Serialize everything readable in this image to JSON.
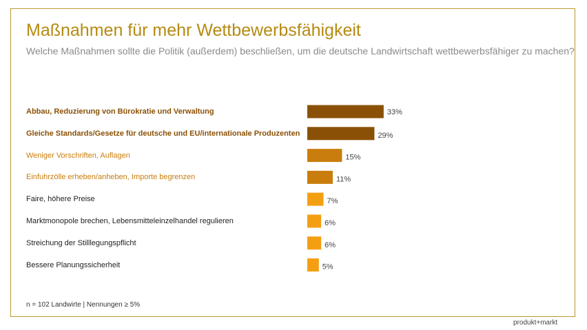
{
  "header": {
    "title": "Maßnahmen für mehr Wettbewerbsfähigkeit",
    "subtitle": "Welche Maßnahmen sollte die Politik (außerdem) beschließen, um die deutsche Landwirtschaft wettbewerbsfähiger zu machen?"
  },
  "footnote": "n = 102 Landwirte | Nennungen ≥ 5%",
  "brand": "produkt+markt",
  "colors": {
    "title": "#b58a13",
    "frame": "#b99a2e",
    "tier1": "#8a5106",
    "tier2": "#c97d0c",
    "tier3": "#f49f12"
  },
  "chart_data": {
    "type": "bar",
    "orientation": "horizontal",
    "categories": [
      "Abbau, Reduzierung von Bürokratie und Verwaltung",
      "Gleiche Standards/Gesetze für deutsche und EU/internationale Produzenten",
      "Weniger Vorschriften, Auflagen",
      "Einfuhrzölle erheben/anheben, Importe begrenzen",
      "Faire, höhere Preise",
      "Marktmonopole brechen, Lebensmitteleinzelhandel regulieren",
      "Streichung der Stilllegungspflicht",
      "Bessere Planungssicherheit"
    ],
    "values": [
      33,
      29,
      15,
      11,
      7,
      6,
      6,
      5
    ],
    "value_labels": [
      "33%",
      "29%",
      "15%",
      "11%",
      "7%",
      "6%",
      "6%",
      "5%"
    ],
    "tiers": [
      "tier1",
      "tier1",
      "tier2",
      "tier2",
      "tier3",
      "tier3",
      "tier3",
      "tier3"
    ],
    "unit": "%"
  }
}
